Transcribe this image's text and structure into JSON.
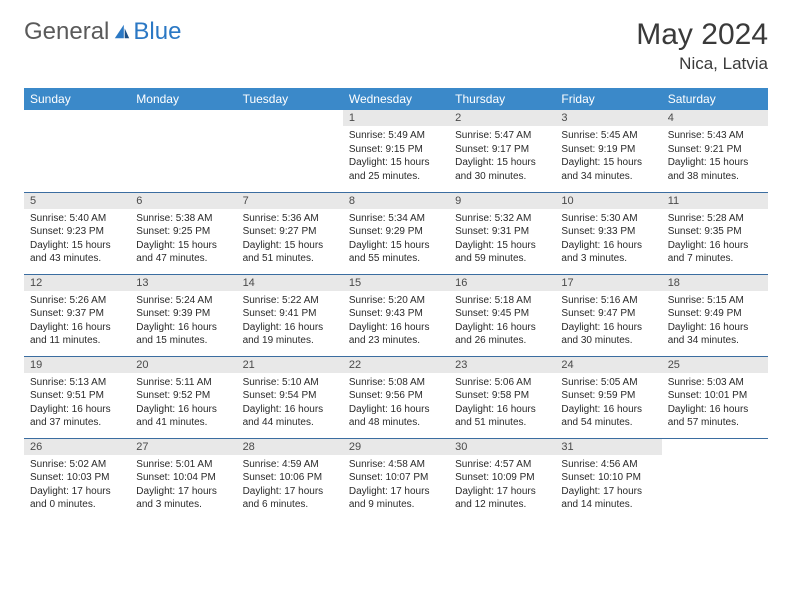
{
  "brand": {
    "general": "General",
    "blue": "Blue"
  },
  "title": "May 2024",
  "location": "Nica, Latvia",
  "colors": {
    "header_bg": "#3b89c9",
    "row_border": "#3b6da0",
    "daynum_bg": "#e8e8e8",
    "brand_gray": "#5a5a5a",
    "brand_blue": "#2b78c4"
  },
  "weekdays": [
    "Sunday",
    "Monday",
    "Tuesday",
    "Wednesday",
    "Thursday",
    "Friday",
    "Saturday"
  ],
  "weeks": [
    [
      {
        "day": "",
        "sunrise": "",
        "sunset": "",
        "daylight": ""
      },
      {
        "day": "",
        "sunrise": "",
        "sunset": "",
        "daylight": ""
      },
      {
        "day": "",
        "sunrise": "",
        "sunset": "",
        "daylight": ""
      },
      {
        "day": "1",
        "sunrise": "Sunrise: 5:49 AM",
        "sunset": "Sunset: 9:15 PM",
        "daylight": "Daylight: 15 hours and 25 minutes."
      },
      {
        "day": "2",
        "sunrise": "Sunrise: 5:47 AM",
        "sunset": "Sunset: 9:17 PM",
        "daylight": "Daylight: 15 hours and 30 minutes."
      },
      {
        "day": "3",
        "sunrise": "Sunrise: 5:45 AM",
        "sunset": "Sunset: 9:19 PM",
        "daylight": "Daylight: 15 hours and 34 minutes."
      },
      {
        "day": "4",
        "sunrise": "Sunrise: 5:43 AM",
        "sunset": "Sunset: 9:21 PM",
        "daylight": "Daylight: 15 hours and 38 minutes."
      }
    ],
    [
      {
        "day": "5",
        "sunrise": "Sunrise: 5:40 AM",
        "sunset": "Sunset: 9:23 PM",
        "daylight": "Daylight: 15 hours and 43 minutes."
      },
      {
        "day": "6",
        "sunrise": "Sunrise: 5:38 AM",
        "sunset": "Sunset: 9:25 PM",
        "daylight": "Daylight: 15 hours and 47 minutes."
      },
      {
        "day": "7",
        "sunrise": "Sunrise: 5:36 AM",
        "sunset": "Sunset: 9:27 PM",
        "daylight": "Daylight: 15 hours and 51 minutes."
      },
      {
        "day": "8",
        "sunrise": "Sunrise: 5:34 AM",
        "sunset": "Sunset: 9:29 PM",
        "daylight": "Daylight: 15 hours and 55 minutes."
      },
      {
        "day": "9",
        "sunrise": "Sunrise: 5:32 AM",
        "sunset": "Sunset: 9:31 PM",
        "daylight": "Daylight: 15 hours and 59 minutes."
      },
      {
        "day": "10",
        "sunrise": "Sunrise: 5:30 AM",
        "sunset": "Sunset: 9:33 PM",
        "daylight": "Daylight: 16 hours and 3 minutes."
      },
      {
        "day": "11",
        "sunrise": "Sunrise: 5:28 AM",
        "sunset": "Sunset: 9:35 PM",
        "daylight": "Daylight: 16 hours and 7 minutes."
      }
    ],
    [
      {
        "day": "12",
        "sunrise": "Sunrise: 5:26 AM",
        "sunset": "Sunset: 9:37 PM",
        "daylight": "Daylight: 16 hours and 11 minutes."
      },
      {
        "day": "13",
        "sunrise": "Sunrise: 5:24 AM",
        "sunset": "Sunset: 9:39 PM",
        "daylight": "Daylight: 16 hours and 15 minutes."
      },
      {
        "day": "14",
        "sunrise": "Sunrise: 5:22 AM",
        "sunset": "Sunset: 9:41 PM",
        "daylight": "Daylight: 16 hours and 19 minutes."
      },
      {
        "day": "15",
        "sunrise": "Sunrise: 5:20 AM",
        "sunset": "Sunset: 9:43 PM",
        "daylight": "Daylight: 16 hours and 23 minutes."
      },
      {
        "day": "16",
        "sunrise": "Sunrise: 5:18 AM",
        "sunset": "Sunset: 9:45 PM",
        "daylight": "Daylight: 16 hours and 26 minutes."
      },
      {
        "day": "17",
        "sunrise": "Sunrise: 5:16 AM",
        "sunset": "Sunset: 9:47 PM",
        "daylight": "Daylight: 16 hours and 30 minutes."
      },
      {
        "day": "18",
        "sunrise": "Sunrise: 5:15 AM",
        "sunset": "Sunset: 9:49 PM",
        "daylight": "Daylight: 16 hours and 34 minutes."
      }
    ],
    [
      {
        "day": "19",
        "sunrise": "Sunrise: 5:13 AM",
        "sunset": "Sunset: 9:51 PM",
        "daylight": "Daylight: 16 hours and 37 minutes."
      },
      {
        "day": "20",
        "sunrise": "Sunrise: 5:11 AM",
        "sunset": "Sunset: 9:52 PM",
        "daylight": "Daylight: 16 hours and 41 minutes."
      },
      {
        "day": "21",
        "sunrise": "Sunrise: 5:10 AM",
        "sunset": "Sunset: 9:54 PM",
        "daylight": "Daylight: 16 hours and 44 minutes."
      },
      {
        "day": "22",
        "sunrise": "Sunrise: 5:08 AM",
        "sunset": "Sunset: 9:56 PM",
        "daylight": "Daylight: 16 hours and 48 minutes."
      },
      {
        "day": "23",
        "sunrise": "Sunrise: 5:06 AM",
        "sunset": "Sunset: 9:58 PM",
        "daylight": "Daylight: 16 hours and 51 minutes."
      },
      {
        "day": "24",
        "sunrise": "Sunrise: 5:05 AM",
        "sunset": "Sunset: 9:59 PM",
        "daylight": "Daylight: 16 hours and 54 minutes."
      },
      {
        "day": "25",
        "sunrise": "Sunrise: 5:03 AM",
        "sunset": "Sunset: 10:01 PM",
        "daylight": "Daylight: 16 hours and 57 minutes."
      }
    ],
    [
      {
        "day": "26",
        "sunrise": "Sunrise: 5:02 AM",
        "sunset": "Sunset: 10:03 PM",
        "daylight": "Daylight: 17 hours and 0 minutes."
      },
      {
        "day": "27",
        "sunrise": "Sunrise: 5:01 AM",
        "sunset": "Sunset: 10:04 PM",
        "daylight": "Daylight: 17 hours and 3 minutes."
      },
      {
        "day": "28",
        "sunrise": "Sunrise: 4:59 AM",
        "sunset": "Sunset: 10:06 PM",
        "daylight": "Daylight: 17 hours and 6 minutes."
      },
      {
        "day": "29",
        "sunrise": "Sunrise: 4:58 AM",
        "sunset": "Sunset: 10:07 PM",
        "daylight": "Daylight: 17 hours and 9 minutes."
      },
      {
        "day": "30",
        "sunrise": "Sunrise: 4:57 AM",
        "sunset": "Sunset: 10:09 PM",
        "daylight": "Daylight: 17 hours and 12 minutes."
      },
      {
        "day": "31",
        "sunrise": "Sunrise: 4:56 AM",
        "sunset": "Sunset: 10:10 PM",
        "daylight": "Daylight: 17 hours and 14 minutes."
      },
      {
        "day": "",
        "sunrise": "",
        "sunset": "",
        "daylight": ""
      }
    ]
  ]
}
